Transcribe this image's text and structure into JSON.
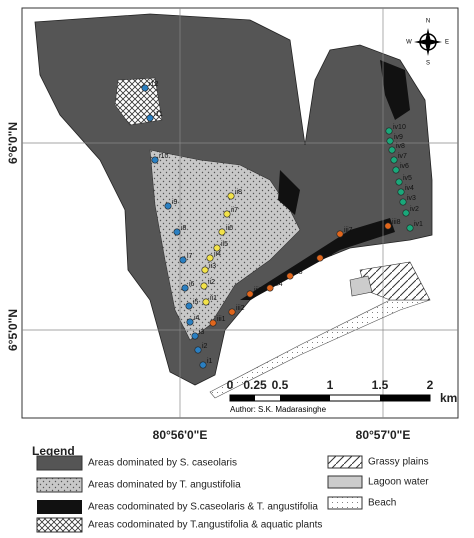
{
  "map": {
    "latitude_labels": [
      "6°6'0\"N",
      "6°5'0\"N"
    ],
    "longitude_labels": [
      "80°56'0\"E",
      "80°57'0\"E"
    ],
    "compass": [
      "N",
      "E",
      "S",
      "W"
    ],
    "scale_bar": {
      "ticks": [
        "0",
        "0.25",
        "0.5",
        "1",
        "1.5",
        "2"
      ],
      "unit": "km"
    },
    "author": "Author: S.K. Madarasinghe"
  },
  "transects": [
    {
      "color": "#2a7fc1",
      "labels": [
        "i1",
        "i2",
        "i3",
        "i4",
        "i5",
        "i6",
        "i7",
        "i8",
        "i9",
        "i10",
        "i11",
        "i12"
      ]
    },
    {
      "color": "#f2e24a",
      "labels": [
        "ii1",
        "ii2",
        "ii3",
        "ii4",
        "ii5",
        "ii6",
        "ii7",
        "ii8"
      ]
    },
    {
      "color": "#e0661c",
      "labels": [
        "iii1",
        "iii2",
        "iii3",
        "iii4",
        "iii5",
        "iii6",
        "iii7",
        "iii8"
      ]
    },
    {
      "color": "#1aa87a",
      "labels": [
        "iv1",
        "iv2",
        "iv3",
        "iv4",
        "iv5",
        "iv6",
        "iv7",
        "iv8",
        "iv9",
        "iv10"
      ]
    }
  ],
  "legend": {
    "title": "Legend",
    "items": [
      "Areas dominated by S. caseolaris",
      "Areas dominated by T. angustifolia",
      "Areas codominated by S.caseolaris & T. angustifolia",
      "Areas codominated by T.angustifolia & aquatic plants",
      "Grassy plains",
      "Lagoon water",
      "Beach"
    ]
  }
}
